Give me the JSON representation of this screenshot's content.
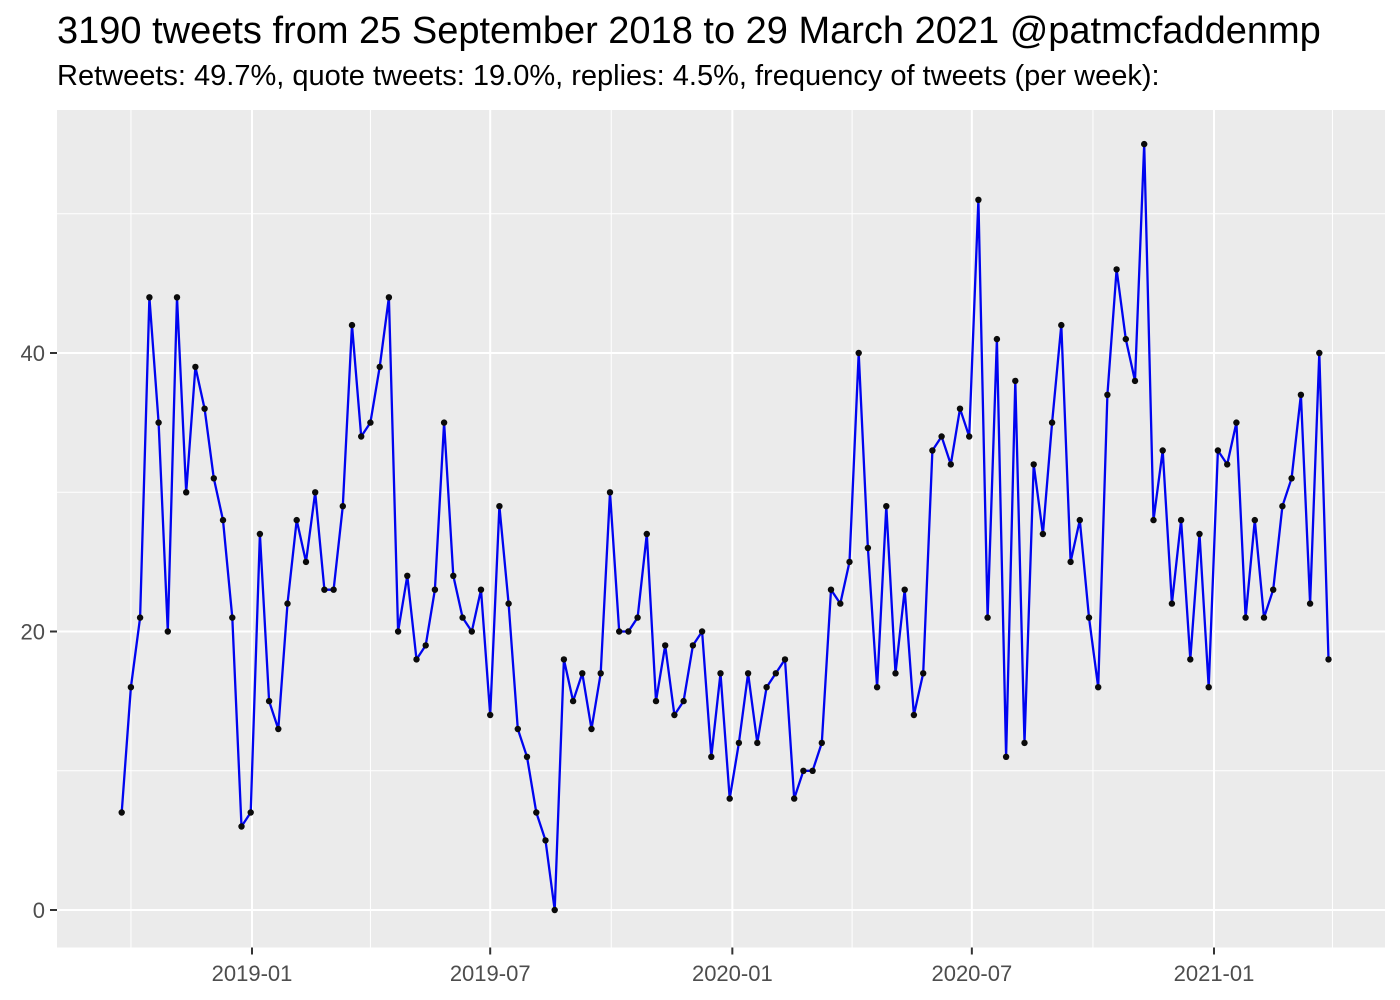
{
  "chart_data": {
    "type": "line",
    "title": "3190 tweets from 25 September 2018 to 29 March 2021 @patmcfaddenmp",
    "subtitle": "Retweets: 49.7%, quote tweets: 19.0%, replies: 4.5%, frequency of tweets (per week):",
    "stats": {
      "total_tweets": 3190,
      "retweets_pct": "49.7%",
      "quote_tweets_pct": "19.0%",
      "replies_pct": "4.5%",
      "account": "@patmcfaddenmp",
      "period": "25 September 2018 to 29 March 2021"
    },
    "xlabel": "",
    "ylabel": "",
    "legend": "none",
    "grid": "on",
    "x_axis": {
      "unit": "week",
      "start_date": "2018-09-24",
      "step_days": 7,
      "end_date": "2021-03-29",
      "tick_labels": [
        "2019-01",
        "2019-07",
        "2020-01",
        "2020-07",
        "2021-01"
      ],
      "tick_dates": [
        "2019-01-01",
        "2019-07-01",
        "2020-01-01",
        "2020-07-01",
        "2021-01-01"
      ],
      "minor_grid_dates": [
        "2018-10-01",
        "2019-04-01",
        "2019-10-01",
        "2020-04-01",
        "2020-10-01",
        "2021-04-01"
      ]
    },
    "y_axis": {
      "tick_labels": [
        "0",
        "20",
        "40"
      ],
      "ticks": [
        0,
        20,
        40
      ],
      "minor_ticks": [
        10,
        30,
        50
      ],
      "ylim": [
        -2.7,
        57.4
      ]
    },
    "series": [
      {
        "name": "tweets per week",
        "values": [
          7,
          16,
          21,
          44,
          35,
          20,
          44,
          30,
          39,
          36,
          31,
          28,
          21,
          6,
          7,
          27,
          15,
          13,
          22,
          28,
          25,
          30,
          23,
          23,
          29,
          42,
          34,
          35,
          39,
          44,
          20,
          24,
          18,
          19,
          23,
          35,
          24,
          21,
          20,
          23,
          14,
          29,
          22,
          13,
          11,
          7,
          5,
          0,
          18,
          15,
          17,
          13,
          17,
          30,
          20,
          20,
          21,
          27,
          15,
          19,
          14,
          15,
          19,
          20,
          11,
          17,
          8,
          12,
          17,
          12,
          16,
          17,
          18,
          8,
          10,
          10,
          12,
          23,
          22,
          25,
          40,
          26,
          16,
          29,
          17,
          23,
          14,
          17,
          33,
          34,
          32,
          36,
          34,
          51,
          21,
          41,
          11,
          38,
          12,
          32,
          27,
          35,
          42,
          25,
          28,
          21,
          16,
          37,
          46,
          41,
          38,
          55,
          28,
          33,
          22,
          28,
          18,
          27,
          16,
          33,
          32,
          35,
          21,
          28,
          21,
          23,
          29,
          31,
          37,
          22,
          40,
          18
        ]
      }
    ],
    "colors": {
      "line": "#0004F0",
      "point": "#0a0a0a",
      "panel_background": "#EBEBEB",
      "gridline": "#FFFFFF",
      "axis_text": "#4d4d4d",
      "tick_mark": "#333333",
      "title_text": "#000000",
      "figure_background": "#FFFFFF"
    }
  }
}
